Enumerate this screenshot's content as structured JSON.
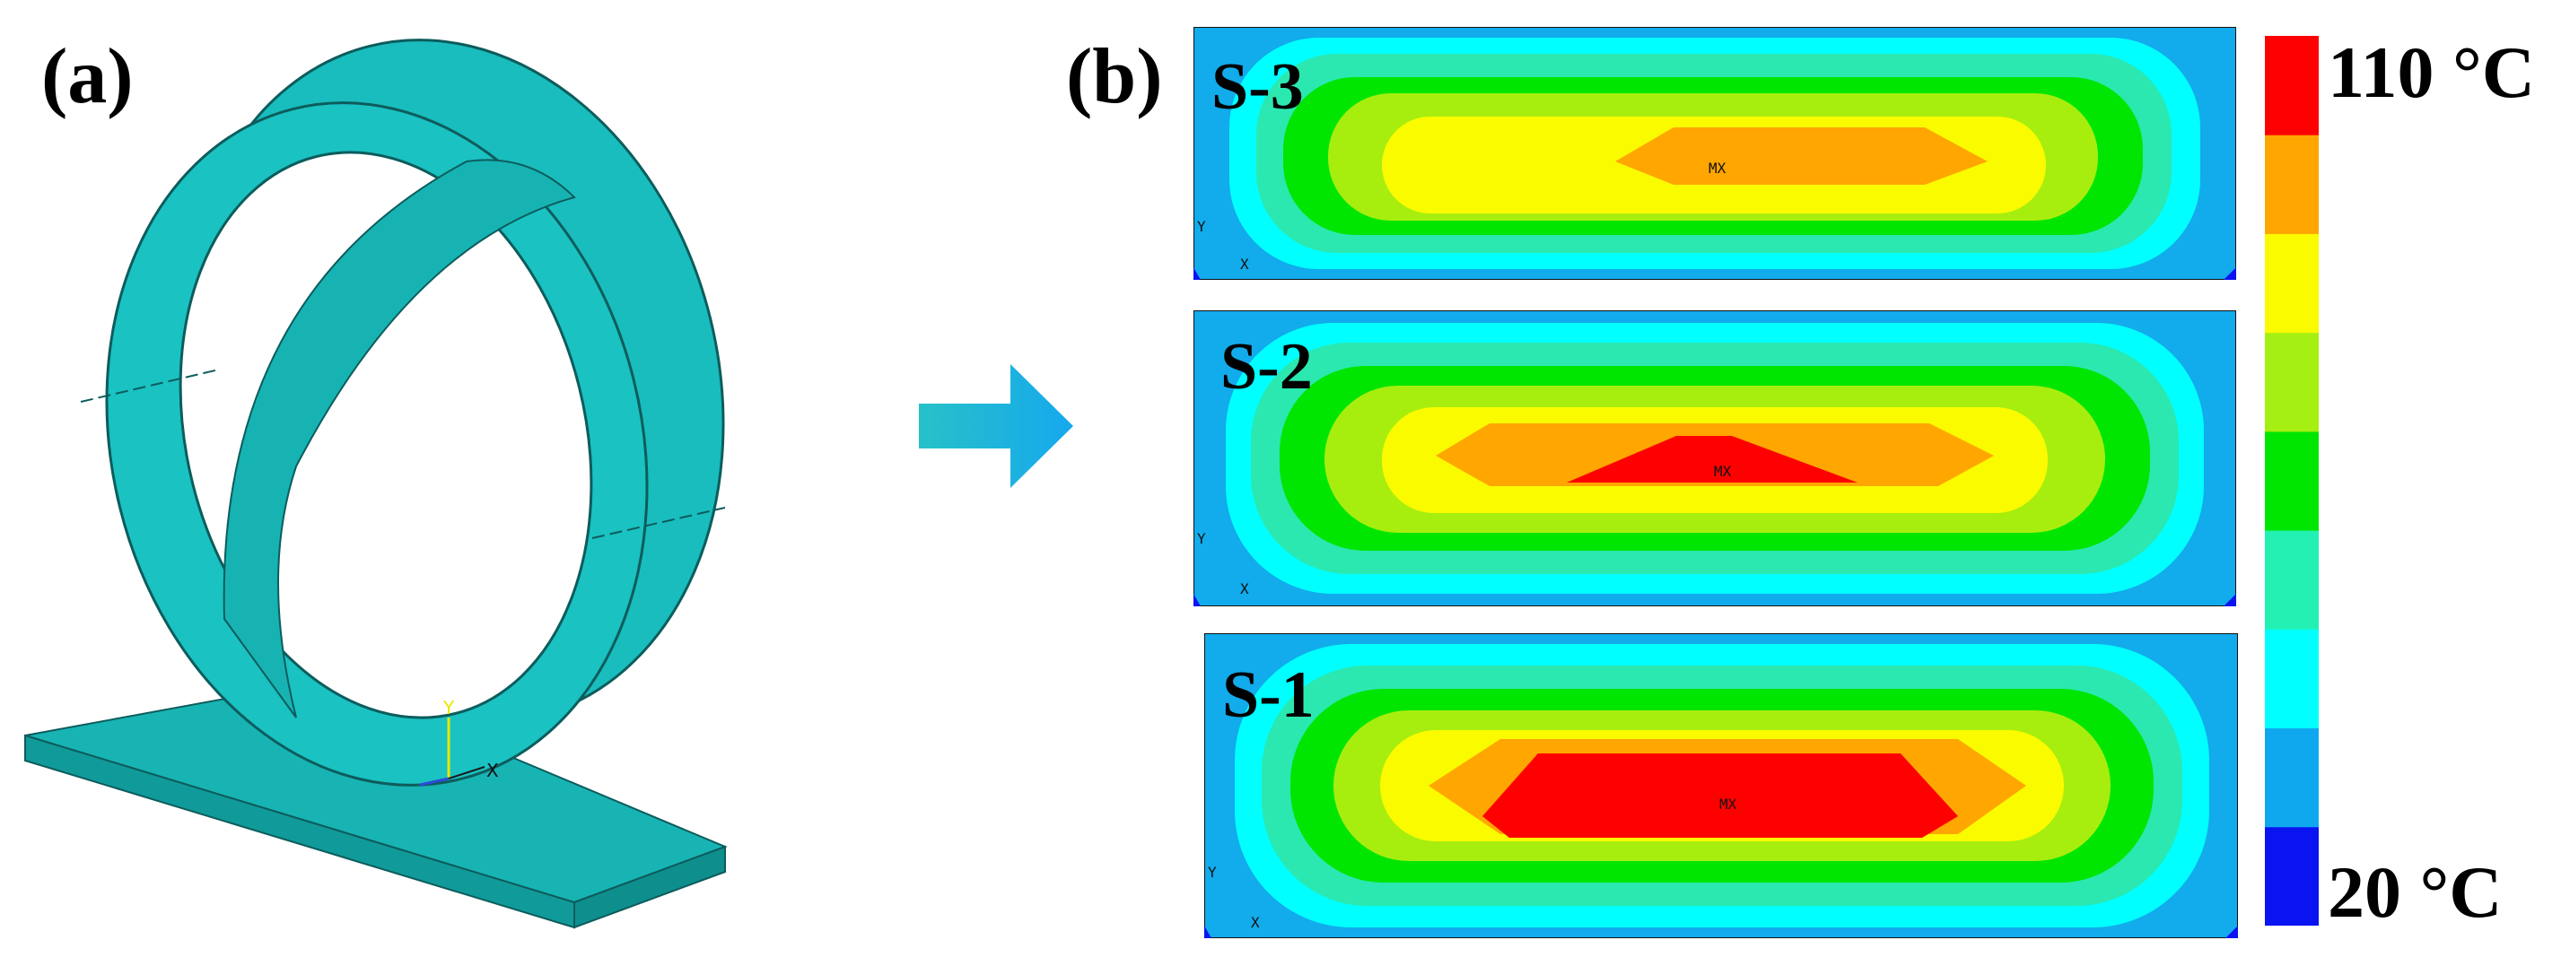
{
  "panels": {
    "a": {
      "label": "(a)"
    },
    "b": {
      "label": "(b)"
    }
  },
  "model": {
    "axis_y": "Y",
    "axis_x": "X"
  },
  "slices": [
    {
      "label": "S-3",
      "max_marker": "MX",
      "axis_y": "Y",
      "axis_x": "X"
    },
    {
      "label": "S-2",
      "max_marker": "MX",
      "axis_y": "Y",
      "axis_x": "X"
    },
    {
      "label": "S-1",
      "max_marker": "MX",
      "axis_y": "Y",
      "axis_x": "X"
    }
  ],
  "colorbar": {
    "max_label": "110 °C",
    "min_label": "20 °C",
    "colors": [
      "#0a14f0",
      "#0fa8ef",
      "#00ffff",
      "#23f1b3",
      "#00e600",
      "#a6ef12",
      "#fbfb00",
      "#ffa600",
      "#ff0000"
    ]
  },
  "contour_colors": [
    "#12abeb",
    "#00ffff",
    "#2be8b0",
    "#00e600",
    "#a7ee0f",
    "#fbfb00",
    "#ffa600",
    "#ff0000"
  ],
  "colors": {
    "model_face": "#19bdbd",
    "model_shade": "#13a5a5",
    "arrow": "#19aee6"
  }
}
